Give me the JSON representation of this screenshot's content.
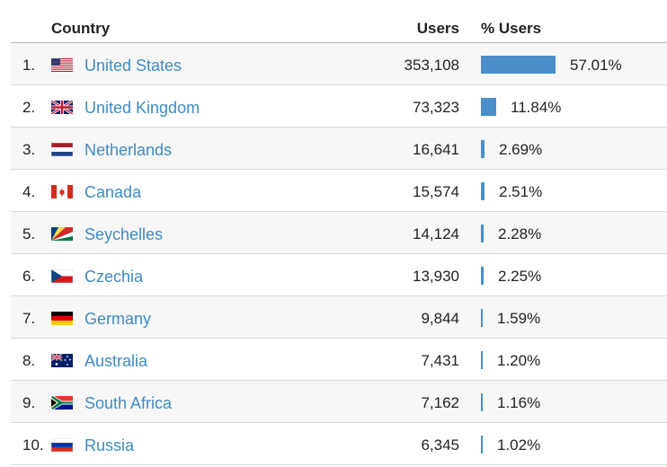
{
  "header": {
    "country_label": "Country",
    "users_label": "Users",
    "pct_label": "% Users"
  },
  "colors": {
    "bar": "#4a8fc8",
    "link": "#3d8bc4"
  },
  "rows": [
    {
      "rank": "1.",
      "country": "United States",
      "flag": "us-flag-icon",
      "users": "353,108",
      "pct": "57.01%",
      "share": 0.5701
    },
    {
      "rank": "2.",
      "country": "United Kingdom",
      "flag": "uk-flag-icon",
      "users": "73,323",
      "pct": "11.84%",
      "share": 0.1184
    },
    {
      "rank": "3.",
      "country": "Netherlands",
      "flag": "nl-flag-icon",
      "users": "16,641",
      "pct": "2.69%",
      "share": 0.0269
    },
    {
      "rank": "4.",
      "country": "Canada",
      "flag": "ca-flag-icon",
      "users": "15,574",
      "pct": "2.51%",
      "share": 0.0251
    },
    {
      "rank": "5.",
      "country": "Seychelles",
      "flag": "sc-flag-icon",
      "users": "14,124",
      "pct": "2.28%",
      "share": 0.0228
    },
    {
      "rank": "6.",
      "country": "Czechia",
      "flag": "cz-flag-icon",
      "users": "13,930",
      "pct": "2.25%",
      "share": 0.0225
    },
    {
      "rank": "7.",
      "country": "Germany",
      "flag": "de-flag-icon",
      "users": "9,844",
      "pct": "1.59%",
      "share": 0.0159
    },
    {
      "rank": "8.",
      "country": "Australia",
      "flag": "au-flag-icon",
      "users": "7,431",
      "pct": "1.20%",
      "share": 0.012
    },
    {
      "rank": "9.",
      "country": "South Africa",
      "flag": "za-flag-icon",
      "users": "7,162",
      "pct": "1.16%",
      "share": 0.0116
    },
    {
      "rank": "10.",
      "country": "Russia",
      "flag": "ru-flag-icon",
      "users": "6,345",
      "pct": "1.02%",
      "share": 0.0102
    }
  ]
}
